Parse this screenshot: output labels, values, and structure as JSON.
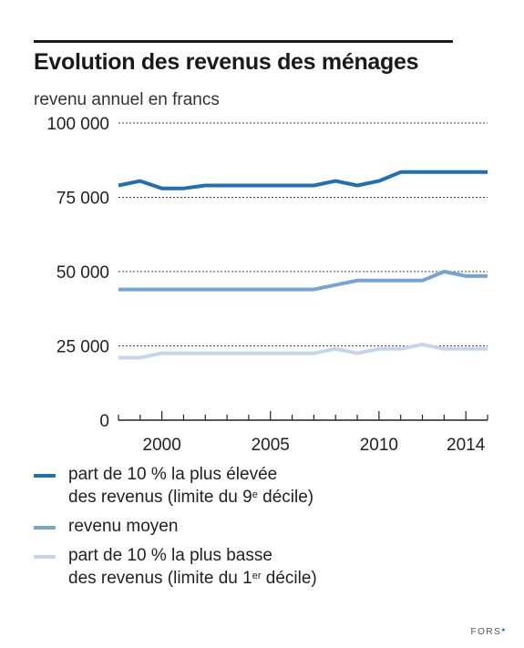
{
  "chart_data": {
    "type": "line",
    "title": "Evolution des revenus des ménages",
    "ylabel": "revenu annuel en francs",
    "xlabel": "",
    "ylim": [
      0,
      100000
    ],
    "y_ticks": [
      {
        "value": 0,
        "label": "0"
      },
      {
        "value": 25000,
        "label": "25 000"
      },
      {
        "value": 50000,
        "label": "50 000"
      },
      {
        "value": 75000,
        "label": "75 000"
      },
      {
        "value": 100000,
        "label": "100 000"
      }
    ],
    "x_ticks": [
      {
        "value": 2000,
        "label": "2000"
      },
      {
        "value": 2005,
        "label": "2005"
      },
      {
        "value": 2010,
        "label": "2010"
      },
      {
        "value": 2014,
        "label": "2014"
      }
    ],
    "xlim": [
      1998,
      2015
    ],
    "grid": "horizontal dashed",
    "legend_position": "bottom",
    "x": [
      1998,
      1999,
      2000,
      2001,
      2002,
      2003,
      2004,
      2005,
      2006,
      2007,
      2008,
      2009,
      2010,
      2011,
      2012,
      2013,
      2014,
      2015
    ],
    "series": [
      {
        "name_lines": [
          "part de 10 % la plus élevée",
          "des revenus (limite du 9",
          "e",
          " décile)"
        ],
        "color": "#1f6fb5",
        "values": [
          79000,
          80500,
          78000,
          78000,
          79000,
          79000,
          79000,
          79000,
          79000,
          79000,
          80500,
          79000,
          80500,
          83500,
          83500,
          83500,
          83500,
          83500
        ]
      },
      {
        "name": "revenu moyen",
        "color": "#74a4d8",
        "values": [
          44000,
          44000,
          44000,
          44000,
          44000,
          44000,
          44000,
          44000,
          44000,
          44000,
          45500,
          47000,
          47000,
          47000,
          47000,
          50000,
          48500,
          48500
        ]
      },
      {
        "name_lines": [
          "part de 10 % la plus basse",
          "des revenus (limite du 1",
          "er",
          " décile)"
        ],
        "color": "#c3d6ee",
        "values": [
          21000,
          21000,
          22500,
          22500,
          22500,
          22500,
          22500,
          22500,
          22500,
          22500,
          24000,
          22500,
          24000,
          24000,
          25500,
          24000,
          24000,
          24000
        ]
      }
    ]
  },
  "credit": "FORS"
}
